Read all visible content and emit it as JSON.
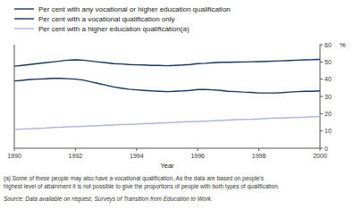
{
  "chart_data": {
    "type": "line",
    "xlabel": "Year",
    "ylabel": "%",
    "x": [
      1990,
      1990.25,
      1990.5,
      1990.75,
      1991,
      1991.25,
      1991.5,
      1991.75,
      1992,
      1992.25,
      1992.5,
      1992.75,
      1993,
      1993.25,
      1993.5,
      1993.75,
      1994,
      1994.25,
      1994.5,
      1994.75,
      1995,
      1995.25,
      1995.5,
      1995.75,
      1996,
      1996.25,
      1996.5,
      1996.75,
      1997,
      1997.25,
      1997.5,
      1997.75,
      1998,
      1998.25,
      1998.5,
      1998.75,
      1999,
      1999.25,
      1999.5,
      1999.75,
      2000
    ],
    "series": [
      {
        "name": "Per cent with any vocational or higher education qualification",
        "color": "#1a3564",
        "values": [
          47.5,
          48.0,
          48.5,
          49.0,
          49.5,
          50.0,
          50.5,
          51.0,
          51.2,
          51.0,
          50.5,
          50.0,
          49.5,
          49.0,
          48.8,
          48.5,
          48.3,
          48.2,
          48.0,
          48.0,
          47.8,
          48.0,
          48.2,
          48.5,
          49.0,
          49.2,
          49.5,
          49.8,
          49.8,
          49.9,
          50.0,
          50.1,
          50.2,
          50.3,
          50.5,
          50.6,
          50.8,
          51.0,
          51.2,
          51.3,
          51.5
        ]
      },
      {
        "name": "Per cent with a vocational qualification only",
        "color": "#1a3564",
        "values": [
          39.0,
          39.3,
          39.8,
          40.0,
          40.2,
          40.5,
          40.5,
          40.3,
          40.0,
          39.5,
          38.5,
          37.5,
          36.5,
          35.5,
          34.8,
          34.2,
          33.8,
          33.5,
          33.2,
          33.0,
          32.8,
          33.0,
          33.2,
          33.5,
          34.0,
          34.0,
          33.8,
          33.5,
          33.0,
          32.8,
          32.5,
          32.3,
          32.0,
          32.0,
          32.0,
          32.2,
          32.5,
          32.8,
          33.0,
          33.0,
          33.2
        ]
      },
      {
        "name": "Per cent with a higher education qualification(a)",
        "color": "#b0b8d8",
        "values": [
          11.0,
          11.1,
          11.3,
          11.5,
          11.7,
          12.0,
          12.2,
          12.4,
          12.5,
          12.7,
          12.9,
          13.1,
          13.3,
          13.5,
          13.7,
          13.9,
          14.0,
          14.2,
          14.4,
          14.6,
          14.8,
          15.0,
          15.2,
          15.4,
          15.5,
          15.7,
          15.9,
          16.1,
          16.3,
          16.5,
          16.7,
          16.8,
          17.0,
          17.2,
          17.4,
          17.5,
          17.7,
          17.9,
          18.0,
          18.2,
          18.3
        ]
      }
    ],
    "xlim": [
      1990,
      2000
    ],
    "ylim": [
      0,
      60
    ],
    "xticks": [
      1990,
      1992,
      1994,
      1996,
      1998,
      2000
    ],
    "yticks": [
      0,
      10,
      20,
      30,
      40,
      50,
      60
    ],
    "grid": false,
    "legend": "top",
    "notes": [
      "(a)  Some of these people may also have a vocational qualification. As the data are based on people's",
      "highest level of attainment it is not possible to give the proportions of people with both types of qualification."
    ],
    "source": "Source: Data available on request, Surveys of Transition from Education to Work."
  }
}
